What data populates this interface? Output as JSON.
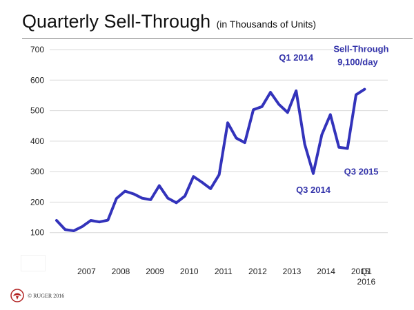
{
  "header": {
    "title": "Quarterly Sell-Through",
    "subtitle": "(in Thousands of Units)"
  },
  "footer": {
    "copyright": "© RUGER 2016",
    "logo_icon": "ruger-eagle-logo-icon"
  },
  "colors": {
    "line": "#3333bb",
    "annotation": "#3333aa",
    "grid": "#d9d9d9"
  },
  "chart_data": {
    "type": "line",
    "title": "Quarterly Sell-Through",
    "subtitle": "(in Thousands of Units)",
    "ylim": [
      0,
      700
    ],
    "yticks": [
      100,
      200,
      300,
      400,
      500,
      600,
      700
    ],
    "grid": true,
    "x_tick_labels": [
      "2007",
      "2008",
      "2009",
      "2010",
      "2011",
      "2012",
      "2013",
      "2014",
      "2015",
      "Q1",
      "2016"
    ],
    "x_tick_quarters": [
      [
        "2007",
        3.5
      ],
      [
        "2008",
        7.5
      ],
      [
        "2009",
        11.5
      ],
      [
        "2010",
        15.5
      ],
      [
        "2011",
        19.5
      ],
      [
        "2012",
        23.5
      ],
      [
        "2013",
        27.5
      ],
      [
        "2014",
        31.5
      ],
      [
        "2015",
        35.5
      ]
    ],
    "series": [
      {
        "values": [
          140,
          110,
          106,
          120,
          140,
          135,
          141,
          212,
          236,
          227,
          213,
          208,
          254,
          213,
          198,
          220,
          284,
          265,
          244,
          290,
          460,
          410,
          395,
          503,
          513,
          560,
          520,
          494,
          565,
          390,
          294,
          421,
          487,
          380,
          376,
          552,
          570
        ]
      }
    ],
    "annotations": [
      {
        "text": "Q1 2014",
        "index": 28
      },
      {
        "text": "Q3 2014",
        "index": 30
      },
      {
        "text": "Q3 2015",
        "index": 34
      },
      {
        "text": "Sell-Through",
        "index": 36
      },
      {
        "text": "9,100/day",
        "index": 36
      }
    ]
  }
}
